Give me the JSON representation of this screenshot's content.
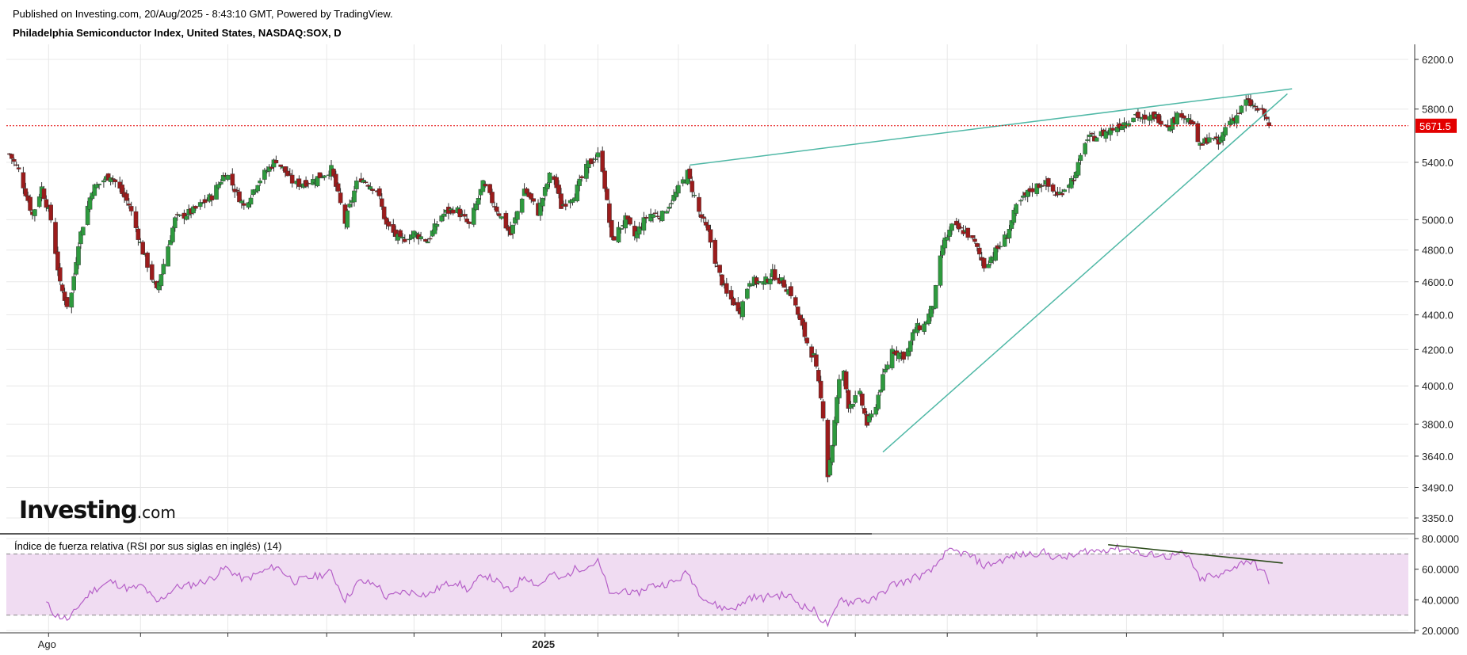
{
  "header": {
    "published": "Published on Investing.com, 20/Aug/2025 - 8:43:10 GMT, Powered by TradingView.",
    "instrument": "Philadelphia Semiconductor Index, United States, NASDAQ:SOX, D"
  },
  "logo": {
    "main": "Investing",
    "suffix": ".com"
  },
  "rsi": {
    "title": "Índice de fuerza relativa (RSI por sus siglas en inglés) (14)"
  },
  "colors": {
    "up": "#2e9a3e",
    "down": "#9b1c1c",
    "trendline": "#4fb8a6",
    "rsi_line": "#b660c8",
    "rsi_band": "#f0dcf2",
    "price_line": "#e30000",
    "divergence": "#2b4a1a",
    "grid": "#e8e8e8"
  },
  "chart_data": [
    {
      "type": "candlestick",
      "ylim": [
        3350,
        6200
      ],
      "yscale": "log",
      "y_ticks": [
        3350,
        3490,
        3640,
        3800,
        4000,
        4200,
        4400,
        4600,
        4800,
        5000,
        5400,
        5800,
        6200
      ],
      "y_tick_labels": [
        "3350.0",
        "3490.0",
        "3640.0",
        "3800.0",
        "4000.0",
        "4200.0",
        "4400.0",
        "4600.0",
        "4800.0",
        "5000.0",
        "5400.0",
        "5800.0",
        "6200.0"
      ],
      "x_ticks": [
        {
          "label": "Ago",
          "index": 17
        },
        {
          "label": "2025",
          "index": 233
        }
      ],
      "last_price": 5671.5,
      "last_price_label": "5671.5",
      "anchors": [
        [
          0,
          5460
        ],
        [
          4,
          5340
        ],
        [
          10,
          5030
        ],
        [
          14,
          5220
        ],
        [
          18,
          5000
        ],
        [
          22,
          4580
        ],
        [
          26,
          4420
        ],
        [
          30,
          4850
        ],
        [
          36,
          5210
        ],
        [
          44,
          5310
        ],
        [
          52,
          5100
        ],
        [
          58,
          4790
        ],
        [
          64,
          4540
        ],
        [
          72,
          5000
        ],
        [
          80,
          5060
        ],
        [
          88,
          5160
        ],
        [
          94,
          5330
        ],
        [
          102,
          5090
        ],
        [
          108,
          5260
        ],
        [
          116,
          5420
        ],
        [
          124,
          5240
        ],
        [
          132,
          5270
        ],
        [
          140,
          5350
        ],
        [
          146,
          4980
        ],
        [
          152,
          5300
        ],
        [
          160,
          5200
        ],
        [
          164,
          4960
        ],
        [
          170,
          4860
        ],
        [
          176,
          4910
        ],
        [
          182,
          4860
        ],
        [
          188,
          5030
        ],
        [
          194,
          5080
        ],
        [
          200,
          4960
        ],
        [
          206,
          5240
        ],
        [
          212,
          5070
        ],
        [
          218,
          4900
        ],
        [
          224,
          5210
        ],
        [
          230,
          5050
        ],
        [
          236,
          5350
        ],
        [
          240,
          5090
        ],
        [
          246,
          5180
        ],
        [
          252,
          5390
        ],
        [
          256,
          5450
        ],
        [
          258,
          5360
        ],
        [
          262,
          4860
        ],
        [
          268,
          5000
        ],
        [
          272,
          4890
        ],
        [
          278,
          5040
        ],
        [
          284,
          5030
        ],
        [
          290,
          5180
        ],
        [
          295,
          5320
        ],
        [
          300,
          5050
        ],
        [
          304,
          4910
        ],
        [
          308,
          4680
        ],
        [
          312,
          4520
        ],
        [
          318,
          4430
        ],
        [
          322,
          4610
        ],
        [
          328,
          4590
        ],
        [
          332,
          4650
        ],
        [
          336,
          4600
        ],
        [
          340,
          4530
        ],
        [
          344,
          4360
        ],
        [
          348,
          4200
        ],
        [
          350,
          4160
        ],
        [
          354,
          3850
        ],
        [
          356,
          3550
        ],
        [
          358,
          3700
        ],
        [
          362,
          4150
        ],
        [
          365,
          3900
        ],
        [
          370,
          3950
        ],
        [
          373,
          3800
        ],
        [
          376,
          3860
        ],
        [
          380,
          4040
        ],
        [
          384,
          4200
        ],
        [
          390,
          4160
        ],
        [
          394,
          4320
        ],
        [
          398,
          4340
        ],
        [
          402,
          4460
        ],
        [
          406,
          4830
        ],
        [
          410,
          4950
        ],
        [
          416,
          4920
        ],
        [
          420,
          4840
        ],
        [
          424,
          4700
        ],
        [
          430,
          4810
        ],
        [
          434,
          4900
        ],
        [
          438,
          5080
        ],
        [
          444,
          5200
        ],
        [
          450,
          5260
        ],
        [
          456,
          5160
        ],
        [
          460,
          5240
        ],
        [
          464,
          5310
        ],
        [
          468,
          5560
        ],
        [
          474,
          5600
        ],
        [
          480,
          5650
        ],
        [
          486,
          5710
        ],
        [
          490,
          5760
        ],
        [
          494,
          5700
        ],
        [
          498,
          5750
        ],
        [
          504,
          5680
        ],
        [
          510,
          5770
        ],
        [
          514,
          5700
        ],
        [
          518,
          5510
        ],
        [
          522,
          5590
        ],
        [
          526,
          5530
        ],
        [
          530,
          5700
        ],
        [
          534,
          5750
        ],
        [
          538,
          5860
        ],
        [
          542,
          5810
        ],
        [
          546,
          5750
        ],
        [
          548,
          5671.5
        ]
      ],
      "trendlines": [
        {
          "name": "upper",
          "points": [
            [
              296,
              5380
            ],
            [
              558,
              5960
            ]
          ]
        },
        {
          "name": "lower",
          "points": [
            [
              380,
              3660
            ],
            [
              556,
              5920
            ]
          ]
        }
      ]
    },
    {
      "type": "line",
      "title": "Índice de fuerza relativa (RSI por sus siglas en inglés) (14)",
      "ylim": [
        20,
        80
      ],
      "y_ticks": [
        20,
        40,
        60,
        80
      ],
      "y_tick_labels": [
        "20.0000",
        "40.0000",
        "60.0000",
        "80.0000"
      ],
      "bands": [
        30,
        70
      ],
      "anchors": [
        [
          16,
          38
        ],
        [
          20,
          30
        ],
        [
          26,
          27
        ],
        [
          30,
          36
        ],
        [
          36,
          46
        ],
        [
          44,
          52
        ],
        [
          52,
          47
        ],
        [
          58,
          49
        ],
        [
          64,
          38
        ],
        [
          72,
          48
        ],
        [
          80,
          50
        ],
        [
          88,
          54
        ],
        [
          94,
          61
        ],
        [
          102,
          53
        ],
        [
          108,
          57
        ],
        [
          116,
          62
        ],
        [
          124,
          52
        ],
        [
          132,
          55
        ],
        [
          140,
          58
        ],
        [
          146,
          40
        ],
        [
          152,
          52
        ],
        [
          160,
          50
        ],
        [
          164,
          41
        ],
        [
          170,
          45
        ],
        [
          176,
          45
        ],
        [
          182,
          43
        ],
        [
          188,
          49
        ],
        [
          194,
          52
        ],
        [
          200,
          46
        ],
        [
          206,
          57
        ],
        [
          212,
          52
        ],
        [
          218,
          45
        ],
        [
          224,
          56
        ],
        [
          230,
          49
        ],
        [
          236,
          57
        ],
        [
          240,
          53
        ],
        [
          246,
          60
        ],
        [
          252,
          62
        ],
        [
          256,
          65
        ],
        [
          258,
          57
        ],
        [
          262,
          42
        ],
        [
          268,
          47
        ],
        [
          272,
          43
        ],
        [
          278,
          49
        ],
        [
          284,
          50
        ],
        [
          290,
          52
        ],
        [
          295,
          58
        ],
        [
          300,
          45
        ],
        [
          304,
          39
        ],
        [
          308,
          36
        ],
        [
          312,
          34
        ],
        [
          318,
          36
        ],
        [
          322,
          42
        ],
        [
          328,
          41
        ],
        [
          332,
          43
        ],
        [
          336,
          43
        ],
        [
          340,
          42
        ],
        [
          344,
          37
        ],
        [
          348,
          34
        ],
        [
          350,
          33
        ],
        [
          354,
          26
        ],
        [
          356,
          24
        ],
        [
          358,
          28
        ],
        [
          362,
          42
        ],
        [
          365,
          38
        ],
        [
          370,
          41
        ],
        [
          373,
          39
        ],
        [
          376,
          40
        ],
        [
          380,
          45
        ],
        [
          384,
          50
        ],
        [
          390,
          52
        ],
        [
          394,
          55
        ],
        [
          398,
          56
        ],
        [
          402,
          60
        ],
        [
          406,
          69
        ],
        [
          410,
          72
        ],
        [
          416,
          70
        ],
        [
          420,
          67
        ],
        [
          424,
          62
        ],
        [
          430,
          65
        ],
        [
          434,
          67
        ],
        [
          438,
          69
        ],
        [
          444,
          70
        ],
        [
          450,
          71
        ],
        [
          456,
          67
        ],
        [
          460,
          68
        ],
        [
          464,
          69
        ],
        [
          468,
          72
        ],
        [
          474,
          72
        ],
        [
          480,
          74
        ],
        [
          486,
          73
        ],
        [
          490,
          72
        ],
        [
          494,
          68
        ],
        [
          498,
          70
        ],
        [
          504,
          68
        ],
        [
          510,
          70
        ],
        [
          514,
          66
        ],
        [
          518,
          52
        ],
        [
          522,
          56
        ],
        [
          526,
          54
        ],
        [
          530,
          60
        ],
        [
          534,
          62
        ],
        [
          538,
          66
        ],
        [
          542,
          63
        ],
        [
          546,
          57
        ],
        [
          548,
          52
        ]
      ],
      "divergence_line": [
        [
          478,
          76
        ],
        [
          554,
          64
        ]
      ]
    }
  ]
}
